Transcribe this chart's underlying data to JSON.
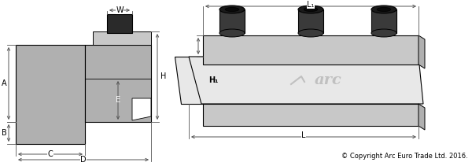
{
  "bg_color": "#ffffff",
  "gray_dark": "#888888",
  "gray_medium": "#999999",
  "gray_body": "#b0b0b0",
  "gray_light": "#c8c8c8",
  "gray_lighter": "#d8d8d8",
  "gray_lightest": "#e8e8e8",
  "dark_block": "#2a2a2a",
  "screw_dark": "#1a1a1a",
  "screw_mid": "#3a3a3a",
  "copyright": "© Copyright Arc Euro Trade Ltd. 2016.",
  "labels": {
    "W": "W",
    "A": "A",
    "B": "B",
    "C": "C",
    "D": "D",
    "E": "E",
    "H": "H",
    "H1": "H₁",
    "L": "L",
    "L1": "L₁"
  }
}
